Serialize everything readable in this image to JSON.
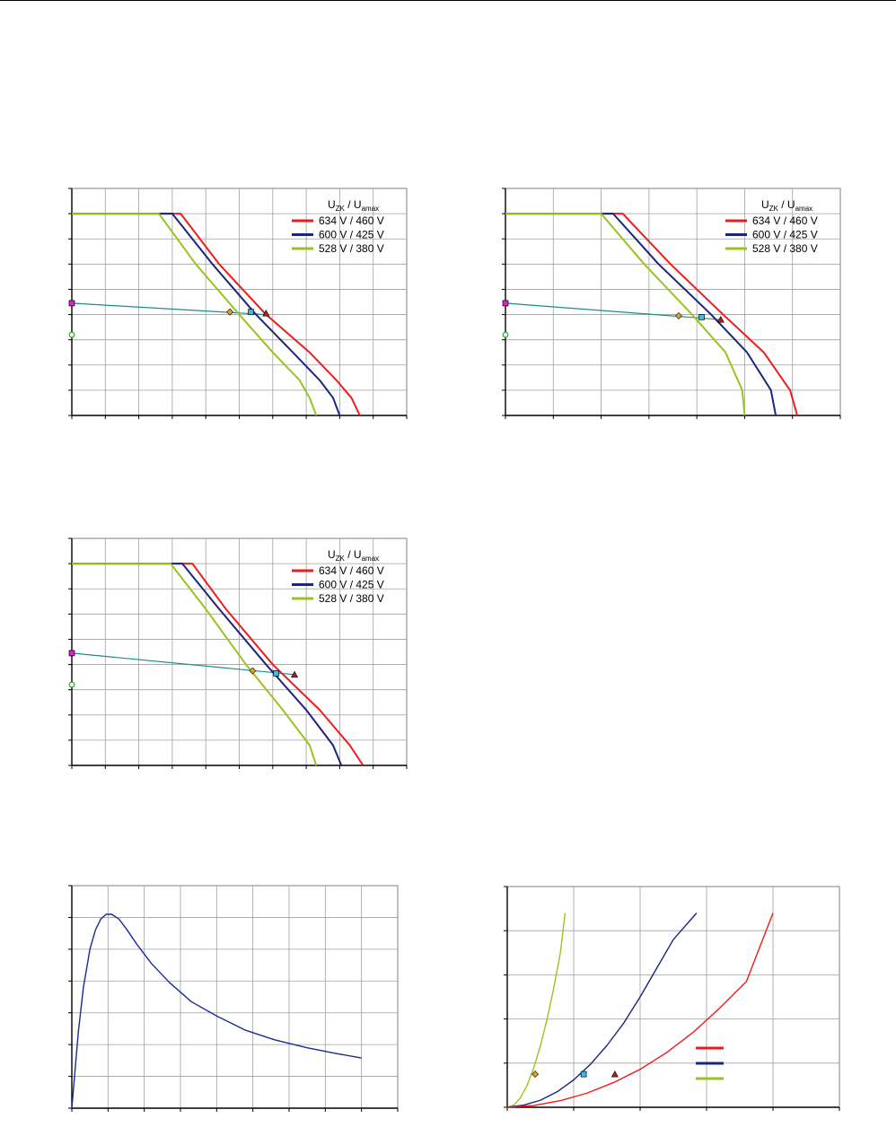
{
  "colors": {
    "c634": "#ee1c1c",
    "c600": "#1a2580",
    "c528": "#99c31f",
    "load": "#1a8f88",
    "curve_blue": "#1a2a9a",
    "marker_magenta": "#e020d0",
    "marker_green": "#28b028",
    "marker_diamond": "#e8a020",
    "marker_square": "#30c0e8",
    "marker_triangle": "#b02020"
  },
  "legend": {
    "head_u1": "U",
    "head_sub1": "ZK",
    "head_sep": "/",
    "head_u2": "U",
    "head_sub2": "amax",
    "entries": [
      "634 V / 460 V",
      "600 V / 425 V",
      "528 V / 380 V"
    ]
  },
  "chart_data": [
    {
      "id": "chart1",
      "type": "line",
      "grid": true,
      "xlim": [
        0,
        10
      ],
      "ylim": [
        0,
        9
      ],
      "series": [
        {
          "name": "634 V / 460 V",
          "color_key": "c634",
          "x": [
            0,
            3.25,
            4.4,
            5.8,
            7.1,
            7.9,
            8.35,
            8.6
          ],
          "y": [
            8,
            8,
            6,
            4,
            2.5,
            1.4,
            0.7,
            0
          ]
        },
        {
          "name": "600 V / 425 V",
          "color_key": "c600",
          "x": [
            0,
            3.0,
            4.2,
            5.5,
            6.6,
            7.4,
            7.8,
            8.0
          ],
          "y": [
            8,
            8,
            6,
            4,
            2.5,
            1.4,
            0.7,
            0
          ]
        },
        {
          "name": "528 V / 380 V",
          "color_key": "c528",
          "x": [
            0,
            2.6,
            3.7,
            5.0,
            6.0,
            6.8,
            7.1,
            7.3
          ],
          "y": [
            8,
            8,
            6,
            4,
            2.5,
            1.4,
            0.7,
            0
          ]
        }
      ],
      "load_line": {
        "x": [
          0,
          5.8
        ],
        "y": [
          4.45,
          4.0
        ]
      },
      "markers": [
        {
          "shape": "square",
          "color_key": "marker_magenta",
          "x": 0,
          "y": 4.45
        },
        {
          "shape": "circle",
          "color_key": "marker_green",
          "x": 0,
          "y": 3.2
        },
        {
          "shape": "diamond",
          "color_key": "marker_diamond",
          "x": 4.72,
          "y": 4.1
        },
        {
          "shape": "square",
          "color_key": "marker_square",
          "x": 5.35,
          "y": 4.1
        },
        {
          "shape": "triangle",
          "color_key": "marker_triangle",
          "x": 5.8,
          "y": 4.05
        }
      ]
    },
    {
      "id": "chart2",
      "type": "line",
      "grid": true,
      "xlim": [
        0,
        7
      ],
      "ylim": [
        0,
        9
      ],
      "series": [
        {
          "name": "634 V / 460 V",
          "color_key": "c634",
          "x": [
            0,
            2.45,
            3.45,
            4.55,
            5.4,
            5.95,
            6.1
          ],
          "y": [
            8,
            8,
            6,
            4,
            2.5,
            1.0,
            0
          ]
        },
        {
          "name": "600 V / 425 V",
          "color_key": "c600",
          "x": [
            0,
            2.25,
            3.2,
            4.3,
            5.05,
            5.55,
            5.65
          ],
          "y": [
            8,
            8,
            6,
            4,
            2.5,
            1.0,
            0
          ]
        },
        {
          "name": "528 V / 380 V",
          "color_key": "c528",
          "x": [
            0,
            2.0,
            2.9,
            3.9,
            4.6,
            4.95,
            5.0
          ],
          "y": [
            8,
            8,
            6,
            4,
            2.5,
            1.0,
            0
          ]
        }
      ],
      "load_line": {
        "x": [
          0,
          4.5
        ],
        "y": [
          4.45,
          3.8
        ]
      },
      "markers": [
        {
          "shape": "square",
          "color_key": "marker_magenta",
          "x": 0,
          "y": 4.45
        },
        {
          "shape": "circle",
          "color_key": "marker_green",
          "x": 0,
          "y": 3.2
        },
        {
          "shape": "diamond",
          "color_key": "marker_diamond",
          "x": 3.62,
          "y": 3.95
        },
        {
          "shape": "square",
          "color_key": "marker_square",
          "x": 4.1,
          "y": 3.9
        },
        {
          "shape": "triangle",
          "color_key": "marker_triangle",
          "x": 4.5,
          "y": 3.8
        }
      ]
    },
    {
      "id": "chart3",
      "type": "line",
      "grid": true,
      "xlim": [
        0,
        10
      ],
      "ylim": [
        0,
        9
      ],
      "series": [
        {
          "name": "634 V / 460 V",
          "color_key": "c634",
          "x": [
            0,
            3.6,
            4.6,
            6.0,
            7.4,
            8.3,
            8.7
          ],
          "y": [
            8,
            8,
            6.2,
            4,
            2.2,
            0.8,
            0
          ]
        },
        {
          "name": "600 V / 425 V",
          "color_key": "c600",
          "x": [
            0,
            3.3,
            4.4,
            5.8,
            7.0,
            7.8,
            8.05
          ],
          "y": [
            8,
            8,
            6.2,
            4,
            2.2,
            0.8,
            0
          ]
        },
        {
          "name": "528 V / 380 V",
          "color_key": "c528",
          "x": [
            0,
            2.95,
            4.0,
            5.2,
            6.3,
            7.1,
            7.3
          ],
          "y": [
            8,
            8,
            6.2,
            4,
            2.2,
            0.8,
            0
          ]
        }
      ],
      "load_line": {
        "x": [
          0,
          6.65
        ],
        "y": [
          4.45,
          3.6
        ]
      },
      "markers": [
        {
          "shape": "square",
          "color_key": "marker_magenta",
          "x": 0,
          "y": 4.45
        },
        {
          "shape": "circle",
          "color_key": "marker_green",
          "x": 0,
          "y": 3.2
        },
        {
          "shape": "diamond",
          "color_key": "marker_diamond",
          "x": 5.4,
          "y": 3.75
        },
        {
          "shape": "square",
          "color_key": "marker_square",
          "x": 6.1,
          "y": 3.65
        },
        {
          "shape": "triangle",
          "color_key": "marker_triangle",
          "x": 6.65,
          "y": 3.6
        }
      ]
    },
    {
      "id": "chart4",
      "type": "line",
      "grid": true,
      "xlim": [
        0,
        9
      ],
      "ylim": [
        0,
        7
      ],
      "series": [
        {
          "name": "",
          "color_key": "curve_blue",
          "x": [
            0,
            0.18,
            0.32,
            0.5,
            0.65,
            0.8,
            0.95,
            1.1,
            1.3,
            1.5,
            1.8,
            2.2,
            2.7,
            3.3,
            4.0,
            4.8,
            5.6,
            6.5,
            7.3,
            8.0
          ],
          "y": [
            0,
            2.4,
            3.8,
            5.0,
            5.6,
            5.95,
            6.1,
            6.1,
            5.95,
            5.65,
            5.15,
            4.55,
            3.95,
            3.35,
            2.9,
            2.45,
            2.15,
            1.9,
            1.72,
            1.58
          ]
        }
      ]
    },
    {
      "id": "chart5",
      "type": "line",
      "grid": true,
      "xlim": [
        0,
        5
      ],
      "ylim": [
        0,
        5
      ],
      "series": [
        {
          "name": "",
          "color_key": "c528",
          "x": [
            0,
            0.1,
            0.2,
            0.3,
            0.4,
            0.5,
            0.6,
            0.7,
            0.8,
            0.87
          ],
          "y": [
            0,
            0.05,
            0.22,
            0.5,
            0.9,
            1.4,
            2.0,
            2.7,
            3.5,
            4.4
          ]
        },
        {
          "name": "",
          "color_key": "c600",
          "x": [
            0,
            0.25,
            0.5,
            0.75,
            1.0,
            1.25,
            1.5,
            1.75,
            2.0,
            2.25,
            2.5,
            2.85
          ],
          "y": [
            0,
            0.05,
            0.16,
            0.35,
            0.62,
            0.97,
            1.4,
            1.9,
            2.5,
            3.15,
            3.8,
            4.4
          ]
        },
        {
          "name": "",
          "color_key": "c634",
          "x": [
            0,
            0.4,
            0.8,
            1.2,
            1.6,
            2.0,
            2.4,
            2.8,
            3.2,
            3.6,
            4.0
          ],
          "y": [
            0,
            0.04,
            0.15,
            0.32,
            0.56,
            0.86,
            1.24,
            1.7,
            2.25,
            2.85,
            4.4
          ]
        }
      ],
      "markers": [
        {
          "shape": "diamond",
          "color_key": "marker_diamond",
          "x": 0.42,
          "y": 0.75
        },
        {
          "shape": "square",
          "color_key": "marker_square",
          "x": 1.15,
          "y": 0.75
        },
        {
          "shape": "triangle",
          "color_key": "marker_triangle",
          "x": 1.62,
          "y": 0.75
        }
      ],
      "legend_swatches": [
        "c634",
        "c600",
        "c528"
      ]
    }
  ]
}
